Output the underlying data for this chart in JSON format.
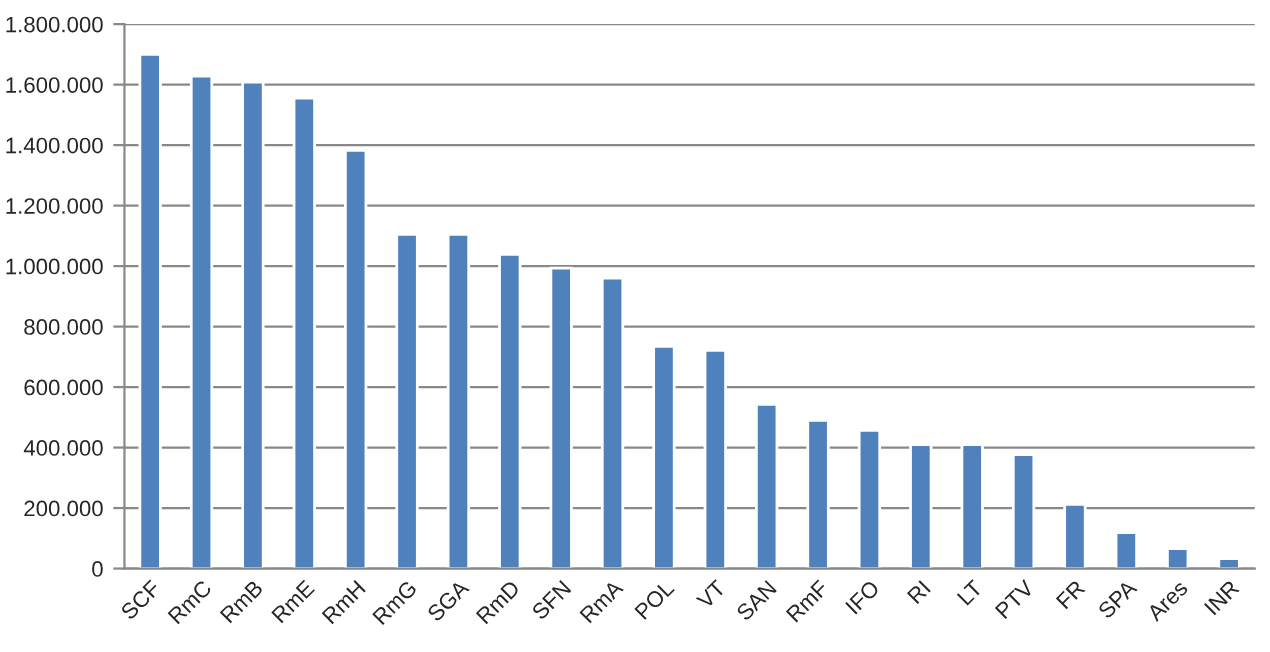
{
  "chart_data": {
    "type": "bar",
    "categories": [
      "SCF",
      "RmC",
      "RmB",
      "RmE",
      "RmH",
      "RmG",
      "SGA",
      "RmD",
      "SFN",
      "RmA",
      "POL",
      "VT",
      "SAN",
      "RmF",
      "IFO",
      "RI",
      "LT",
      "PTV",
      "FR",
      "SPA",
      "Ares",
      "INR"
    ],
    "values": [
      1700000,
      1628000,
      1608000,
      1555000,
      1383000,
      1105000,
      1105000,
      1039000,
      993000,
      960000,
      735000,
      721000,
      543000,
      490000,
      457000,
      410000,
      410000,
      377000,
      212000,
      119000,
      66000,
      33000
    ],
    "color": "#4f81bd",
    "ylim": [
      0,
      1800000
    ],
    "yticks": [
      {
        "value": 0,
        "label": "0"
      },
      {
        "value": 200000,
        "label": "200.000"
      },
      {
        "value": 400000,
        "label": "400.000"
      },
      {
        "value": 600000,
        "label": "600.000"
      },
      {
        "value": 800000,
        "label": "800.000"
      },
      {
        "value": 1000000,
        "label": "1.000.000"
      },
      {
        "value": 1200000,
        "label": "1.200.000"
      },
      {
        "value": 1400000,
        "label": "1.400.000"
      },
      {
        "value": 1600000,
        "label": "1.600.000"
      },
      {
        "value": 1800000,
        "label": "1.800.000"
      }
    ],
    "grid": "y",
    "legend": false
  }
}
